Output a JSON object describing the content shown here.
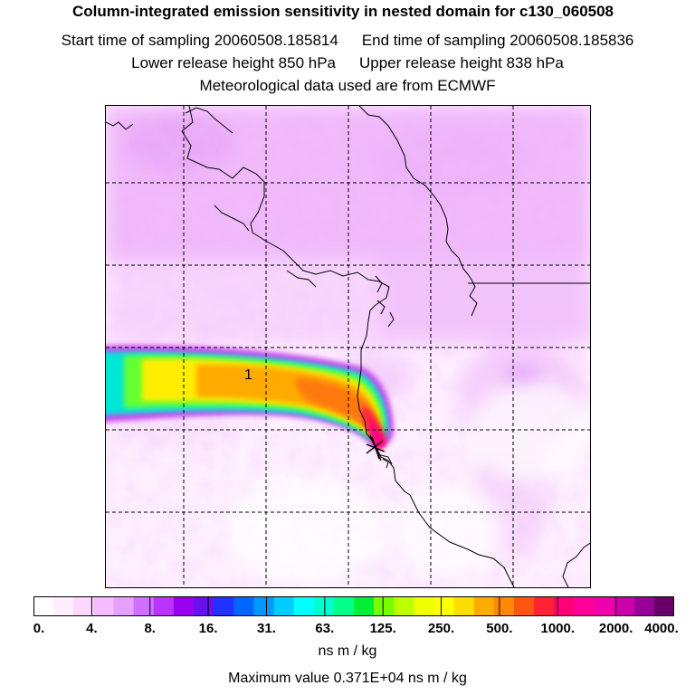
{
  "header": {
    "title": "Column-integrated emission sensitivity in nested domain for c130_060508",
    "start_label": "Start time of sampling 20060508.185814",
    "end_label": "End time of sampling 20060508.185836",
    "lower_label": "Lower release height  850 hPa",
    "upper_label": "Upper release height  838 hPa",
    "met_label": "Meteorological data used are from ECMWF"
  },
  "map": {
    "contour_label": "1",
    "release_marker": "release-point-star"
  },
  "colorbar": {
    "colors": [
      "#ffffff",
      "#ffeeff",
      "#ffd8ff",
      "#f6bcff",
      "#e6a0ff",
      "#d070ff",
      "#bb33ff",
      "#9900ee",
      "#6611ee",
      "#2233ff",
      "#0066ff",
      "#0099ff",
      "#00ccff",
      "#00ffff",
      "#00ffcc",
      "#00ff88",
      "#00ee33",
      "#77ff00",
      "#bbff00",
      "#eeff00",
      "#ffff00",
      "#ffdd00",
      "#ffaa00",
      "#ff8800",
      "#ff5511",
      "#ff2233",
      "#ff0077",
      "#ff0099",
      "#ee00aa",
      "#cc00aa",
      "#990099",
      "#660066"
    ],
    "tick_labels": [
      "0.",
      "4.",
      "8.",
      "16.",
      "31.",
      "63.",
      "125.",
      "250.",
      "500.",
      "1000.",
      "2000.",
      "4000."
    ],
    "units": "ns m / kg",
    "max_value": "Maximum value  0.371E+04 ns m / kg"
  }
}
